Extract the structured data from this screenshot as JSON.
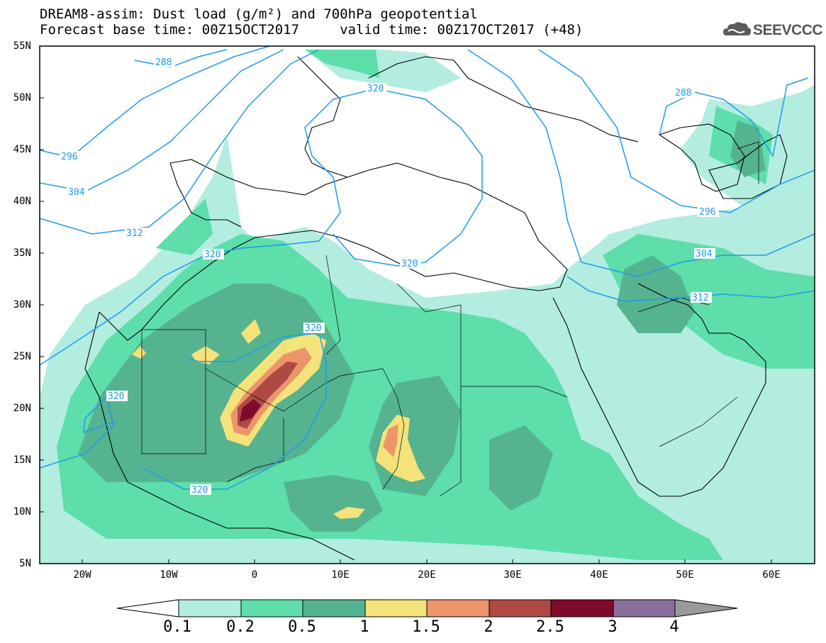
{
  "header": {
    "title_line1": "DREAM8-assim: Dust load (g/m²) and 700hPa geopotential",
    "title_line2": "Forecast base time: 00Z15OCT2017     valid time: 00Z17OCT2017 (+48)",
    "logo_text": "SEEVCCC"
  },
  "map": {
    "lat_labels": [
      "55N",
      "50N",
      "45N",
      "40N",
      "35N",
      "30N",
      "25N",
      "20N",
      "15N",
      "10N",
      "5N"
    ],
    "lon_labels": [
      "20W",
      "10W",
      "0",
      "10E",
      "20E",
      "30E",
      "40E",
      "50E",
      "60E"
    ],
    "contour_labels": [
      "288",
      "296",
      "304",
      "312",
      "320",
      "320",
      "320",
      "320",
      "320",
      "320",
      "288",
      "296",
      "304",
      "312"
    ],
    "extent": {
      "lon": [
        -25,
        65
      ],
      "lat": [
        5,
        55
      ]
    }
  },
  "colorbar": {
    "levels": [
      "0.1",
      "0.2",
      "0.5",
      "1",
      "1.5",
      "2",
      "2.5",
      "3",
      "4"
    ],
    "colors": [
      "#ffffff",
      "#b2ede0",
      "#5ddeaa",
      "#55b38f",
      "#f4e27a",
      "#ec956a",
      "#ad4a44",
      "#800a2c",
      "#8a6e9c",
      "#9a9a9a"
    ]
  }
}
